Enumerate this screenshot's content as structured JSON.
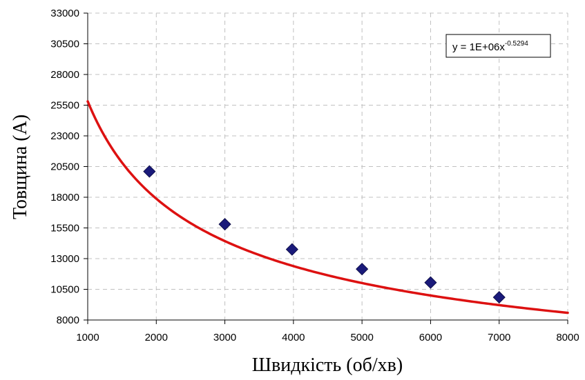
{
  "chart_data": {
    "type": "scatter",
    "title": "",
    "xlabel": "Швидкість (об/хв)",
    "ylabel": "Товщина (А)",
    "xlim": [
      1000,
      8000
    ],
    "ylim": [
      8000,
      33000
    ],
    "xticks": [
      "1000",
      "2000",
      "3000",
      "4000",
      "5000",
      "6000",
      "7000",
      "8000"
    ],
    "yticks": [
      "8000",
      "10500",
      "13000",
      "15500",
      "18000",
      "20500",
      "23000",
      "25500",
      "28000",
      "30500",
      "33000"
    ],
    "grid": true,
    "series": [
      {
        "marker": "diamond",
        "color": "#1a1a7a",
        "x": [
          1900,
          3000,
          3980,
          5000,
          6000,
          7000
        ],
        "y": [
          20100,
          15800,
          13750,
          12150,
          11050,
          9850
        ]
      }
    ],
    "trendline": {
      "type": "power",
      "coefficient": 1000000,
      "exponent": -0.5294,
      "color": "#dd1111",
      "equation_main": "y = 1E+06x",
      "equation_exp": "-0.5294"
    }
  }
}
